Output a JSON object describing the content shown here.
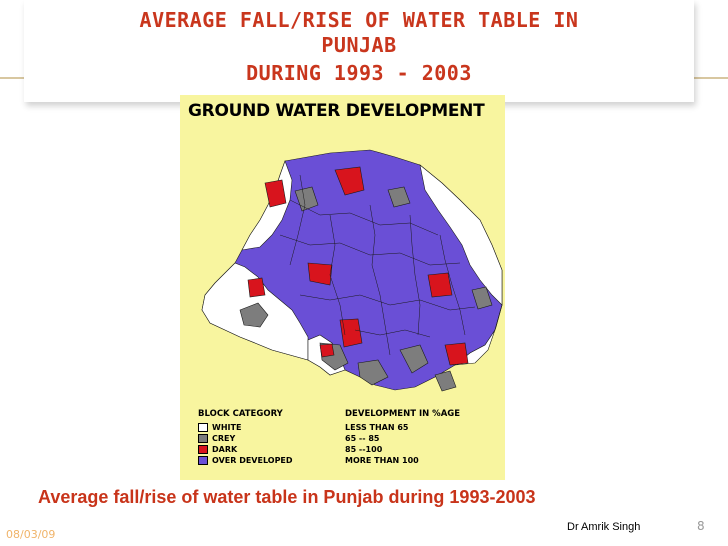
{
  "slide": {
    "title_line1": "AVERAGE FALL/RISE OF WATER TABLE IN",
    "title_line2": "PUNJAB",
    "title_line3": "DURING 1993 - 2003",
    "caption": "Average fall/rise of water table in Punjab during 1993-2003",
    "date": "08/03/09",
    "author": "Dr Amrik Singh",
    "page_number": "8",
    "title_color": "#c9361d",
    "caption_color": "#c8341a"
  },
  "map": {
    "title": "GROUND WATER DEVELOPMENT",
    "panel_color": "#f8f59f",
    "legend": {
      "heading_left": "BLOCK CATEGORY",
      "heading_right": "DEVELOPMENT IN %AGE",
      "items": [
        {
          "label": "WHITE",
          "range": "LESS THAN 65",
          "color": "#ffffff"
        },
        {
          "label": "CREY",
          "range": "65 -- 85",
          "color": "#7d7d7d"
        },
        {
          "label": "DARK",
          "range": "85 --100",
          "color": "#d8141d"
        },
        {
          "label": "OVER DEVELOPED",
          "range": "MORE THAN 100",
          "color": "#6a4fd6"
        }
      ]
    }
  }
}
